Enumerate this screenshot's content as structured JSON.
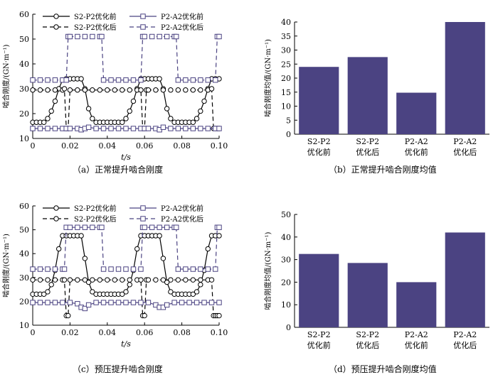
{
  "chart_data": [
    {
      "id": "a",
      "type": "line",
      "caption": "（a）正常提升啮合刚度",
      "xlabel": "t/s",
      "ylabel": "啮合刚度/(GN·m⁻¹)",
      "xlim": [
        0,
        0.1
      ],
      "ylim": [
        10,
        60
      ],
      "xticks": [
        "0",
        "0.02",
        "0.04",
        "0.06",
        "0.08",
        "0.10"
      ],
      "yticks": [
        "10",
        "20",
        "30",
        "40",
        "50",
        "60"
      ],
      "legend": [
        "S2-P2优化前",
        "P2-A2优化前",
        "S2-P2优化后",
        "P2-A2优化后"
      ],
      "series": [
        {
          "name": "S2-P2优化前",
          "marker": "circle",
          "dash": "solid",
          "x": [
            0,
            0.002,
            0.004,
            0.006,
            0.008,
            0.01,
            0.012,
            0.014,
            0.016,
            0.018,
            0.02,
            0.022,
            0.024,
            0.026,
            0.028,
            0.03,
            0.032,
            0.034,
            0.036,
            0.038,
            0.04,
            0.042,
            0.044,
            0.046,
            0.048,
            0.05,
            0.052,
            0.054,
            0.056,
            0.058,
            0.06,
            0.062,
            0.064,
            0.066,
            0.068,
            0.07,
            0.072,
            0.074,
            0.076,
            0.078,
            0.08,
            0.082,
            0.084,
            0.086,
            0.088,
            0.09,
            0.092,
            0.094,
            0.096,
            0.098,
            0.1
          ],
          "values": [
            16.5,
            16.5,
            16.5,
            16.5,
            18,
            21,
            25,
            30,
            33.5,
            34,
            34,
            34,
            34,
            34,
            30,
            22,
            18,
            16.5,
            16.5,
            16.5,
            16.5,
            16.5,
            16.5,
            16.5,
            16.5,
            18,
            21,
            25,
            30,
            34,
            34,
            34,
            34,
            34,
            34,
            30,
            22,
            18,
            16.5,
            16.5,
            16.5,
            16.5,
            16.5,
            16.5,
            18,
            21,
            25,
            30,
            34,
            34,
            34
          ]
        },
        {
          "name": "S2-P2优化后",
          "marker": "circle",
          "dash": "dashed",
          "x": [
            0,
            0.004,
            0.008,
            0.012,
            0.016,
            0.017,
            0.018,
            0.019,
            0.02,
            0.024,
            0.028,
            0.032,
            0.036,
            0.04,
            0.044,
            0.048,
            0.052,
            0.056,
            0.058,
            0.059,
            0.06,
            0.061,
            0.062,
            0.066,
            0.07,
            0.074,
            0.078,
            0.082,
            0.086,
            0.09,
            0.094,
            0.096,
            0.097,
            0.098,
            0.099,
            0.1
          ],
          "values": [
            29.5,
            29.5,
            29.5,
            29.5,
            29.5,
            30,
            14,
            14,
            29.5,
            29.5,
            29.5,
            29.5,
            29.5,
            29.5,
            29.5,
            29.5,
            29.5,
            29.5,
            29.5,
            14,
            14,
            29.5,
            29.5,
            29.5,
            29.5,
            29.5,
            29.5,
            29.5,
            29.5,
            29.5,
            29.5,
            30,
            14,
            14,
            14,
            14
          ]
        },
        {
          "name": "P2-A2优化前",
          "marker": "square",
          "dash": "solid",
          "x": [
            0,
            0.004,
            0.008,
            0.012,
            0.016,
            0.018,
            0.02,
            0.024,
            0.026,
            0.028,
            0.03,
            0.034,
            0.038,
            0.042,
            0.046,
            0.05,
            0.054,
            0.058,
            0.06,
            0.062,
            0.066,
            0.068,
            0.07,
            0.074,
            0.078,
            0.082,
            0.086,
            0.09,
            0.094,
            0.098,
            0.1
          ],
          "values": [
            14,
            14,
            14,
            14,
            14,
            14,
            14,
            14,
            13.5,
            14,
            14.5,
            14,
            14,
            14,
            14,
            14,
            14,
            14,
            14,
            14,
            14,
            13.5,
            14.5,
            14,
            14,
            14,
            14,
            14,
            14,
            14,
            14
          ]
        },
        {
          "name": "P2-A2优化后",
          "marker": "square",
          "dash": "dashed",
          "x": [
            0,
            0.004,
            0.008,
            0.012,
            0.016,
            0.018,
            0.019,
            0.02,
            0.024,
            0.028,
            0.032,
            0.036,
            0.037,
            0.038,
            0.042,
            0.046,
            0.05,
            0.054,
            0.058,
            0.059,
            0.06,
            0.064,
            0.068,
            0.072,
            0.076,
            0.077,
            0.078,
            0.082,
            0.086,
            0.09,
            0.094,
            0.098,
            0.099,
            0.1
          ],
          "values": [
            33.5,
            33.5,
            33.5,
            33.5,
            33.5,
            33.5,
            51,
            51,
            51,
            51,
            51,
            51,
            51,
            33.5,
            33.5,
            33.5,
            33.5,
            33.5,
            33.5,
            51,
            51,
            51,
            51,
            51,
            51,
            51,
            33.5,
            33.5,
            33.5,
            33.5,
            33.5,
            33.5,
            51,
            51
          ]
        }
      ]
    },
    {
      "id": "b",
      "type": "bar",
      "caption": "（b）正常提升啮合刚度均值",
      "ylabel": "啮合刚度均值/(GN·m⁻¹)",
      "ylim": [
        0,
        40
      ],
      "yticks": [
        "0",
        "5",
        "10",
        "15",
        "20",
        "25",
        "30",
        "35",
        "40"
      ],
      "categories": [
        [
          "S2-P2",
          "优化前"
        ],
        [
          "S2-P2",
          "优化后"
        ],
        [
          "P2-A2",
          "优化前"
        ],
        [
          "P2-A2",
          "优化后"
        ]
      ],
      "values": [
        24,
        27.5,
        14.8,
        40
      ],
      "color": "#4b4382"
    },
    {
      "id": "c",
      "type": "line",
      "caption": "（c）预压提升啮合刚度",
      "xlabel": "t/s",
      "ylabel": "啮合刚度/(GN·m⁻¹)",
      "xlim": [
        0,
        0.1
      ],
      "ylim": [
        10,
        60
      ],
      "xticks": [
        "0",
        "0.02",
        "0.04",
        "0.06",
        "0.08",
        "0.10"
      ],
      "yticks": [
        "10",
        "20",
        "30",
        "40",
        "50",
        "60"
      ],
      "legend": [
        "S2-P2优化前",
        "P2-A2优化前",
        "S2-P2优化后",
        "P2-A2优化后"
      ],
      "series": [
        {
          "name": "S2-P2优化前",
          "marker": "circle",
          "dash": "solid",
          "x": [
            0,
            0.002,
            0.004,
            0.006,
            0.008,
            0.01,
            0.012,
            0.014,
            0.016,
            0.018,
            0.02,
            0.022,
            0.024,
            0.026,
            0.028,
            0.03,
            0.032,
            0.034,
            0.036,
            0.038,
            0.04,
            0.042,
            0.044,
            0.046,
            0.048,
            0.05,
            0.052,
            0.054,
            0.056,
            0.058,
            0.06,
            0.062,
            0.064,
            0.066,
            0.068,
            0.07,
            0.072,
            0.074,
            0.076,
            0.078,
            0.08,
            0.082,
            0.084,
            0.086,
            0.088,
            0.09,
            0.092,
            0.094,
            0.096,
            0.098,
            0.1
          ],
          "values": [
            23,
            23,
            23,
            23,
            24,
            27,
            33,
            42,
            47.5,
            47.5,
            47.5,
            47.5,
            47.5,
            47.5,
            38,
            28,
            24,
            23,
            23,
            23,
            23,
            23,
            23,
            23,
            23,
            24,
            27,
            33,
            42,
            47.5,
            47.5,
            47.5,
            47.5,
            47.5,
            47.5,
            38,
            28,
            24,
            23,
            23,
            23,
            23,
            23,
            23,
            24,
            27,
            33,
            42,
            47.5,
            47.5,
            47.5
          ]
        },
        {
          "name": "S2-P2优化后",
          "marker": "circle",
          "dash": "dashed",
          "x": [
            0,
            0.004,
            0.008,
            0.012,
            0.016,
            0.017,
            0.018,
            0.019,
            0.02,
            0.024,
            0.028,
            0.032,
            0.036,
            0.04,
            0.044,
            0.048,
            0.052,
            0.056,
            0.058,
            0.059,
            0.06,
            0.061,
            0.062,
            0.066,
            0.07,
            0.074,
            0.078,
            0.082,
            0.086,
            0.09,
            0.094,
            0.096,
            0.097,
            0.098,
            0.099,
            0.1
          ],
          "values": [
            29,
            29,
            29,
            29,
            29,
            29,
            14,
            14,
            29,
            29,
            29,
            29,
            29,
            29,
            29,
            29,
            29,
            29,
            29,
            14,
            14,
            29,
            29,
            29,
            29,
            29,
            29,
            29,
            29,
            29,
            29,
            29,
            14,
            14,
            14,
            14
          ]
        },
        {
          "name": "P2-A2优化前",
          "marker": "square",
          "dash": "solid",
          "x": [
            0,
            0.004,
            0.008,
            0.012,
            0.016,
            0.02,
            0.024,
            0.026,
            0.028,
            0.03,
            0.034,
            0.038,
            0.042,
            0.046,
            0.05,
            0.054,
            0.058,
            0.062,
            0.066,
            0.068,
            0.07,
            0.072,
            0.076,
            0.08,
            0.084,
            0.088,
            0.092,
            0.096,
            0.1
          ],
          "values": [
            19.5,
            19.5,
            19.5,
            19.5,
            19.5,
            19.5,
            19,
            17.5,
            17,
            18.5,
            19.5,
            19.5,
            19.5,
            19.5,
            19.5,
            19.5,
            19.5,
            19.5,
            18.5,
            17.5,
            17.5,
            18.5,
            19.5,
            19.5,
            19.5,
            19.5,
            19.5,
            19.5,
            19.5
          ]
        },
        {
          "name": "P2-A2优化后",
          "marker": "square",
          "dash": "dashed",
          "x": [
            0,
            0.004,
            0.008,
            0.012,
            0.016,
            0.017,
            0.018,
            0.02,
            0.024,
            0.028,
            0.032,
            0.036,
            0.037,
            0.038,
            0.042,
            0.046,
            0.05,
            0.054,
            0.058,
            0.059,
            0.06,
            0.064,
            0.068,
            0.072,
            0.076,
            0.077,
            0.078,
            0.082,
            0.086,
            0.09,
            0.094,
            0.098,
            0.099,
            0.1
          ],
          "values": [
            33.5,
            33.5,
            33.5,
            33.5,
            33.5,
            33.5,
            51,
            51,
            51,
            51,
            51,
            51,
            51,
            33.5,
            33.5,
            33.5,
            33.5,
            33.5,
            33.5,
            51,
            51,
            51,
            51,
            51,
            51,
            51,
            33.5,
            33.5,
            33.5,
            33.5,
            33.5,
            33.5,
            51,
            51
          ]
        }
      ]
    },
    {
      "id": "d",
      "type": "bar",
      "caption": "（d）预压提升啮合刚度均值",
      "ylabel": "啮合刚度均值/(GN·m⁻¹)",
      "ylim": [
        0,
        50
      ],
      "yticks": [
        "0",
        "10",
        "20",
        "30",
        "40",
        "50"
      ],
      "categories": [
        [
          "S2-P2",
          "优化前"
        ],
        [
          "S2-P2",
          "优化后"
        ],
        [
          "P2-A2",
          "优化前"
        ],
        [
          "P2-A2",
          "优化后"
        ]
      ],
      "values": [
        32.5,
        28.5,
        20,
        42
      ],
      "color": "#4b4382"
    }
  ]
}
